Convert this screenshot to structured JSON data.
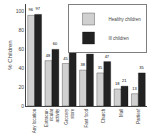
{
  "chart_data": {
    "type": "bar",
    "categories": [
      "Any location",
      "Extracur-\nricular\nactivity",
      "Grocery\nstore",
      "Fast food",
      "Church",
      "Mall",
      "Partiesf"
    ],
    "series": [
      {
        "name": "Healthy children",
        "color": "#d0d0d0",
        "values": [
          96,
          48,
          45,
          38,
          35,
          18,
          13
        ]
      },
      {
        "name": "Ill children",
        "color": "#222222",
        "values": [
          97,
          60,
          60,
          55,
          47,
          21,
          35
        ]
      }
    ],
    "ylabel": "% Children",
    "ylim": [
      0,
      108
    ],
    "yticks": [
      0,
      20,
      40,
      60,
      80,
      100
    ],
    "grid": false,
    "legend": "upper right",
    "data_labels": true
  }
}
